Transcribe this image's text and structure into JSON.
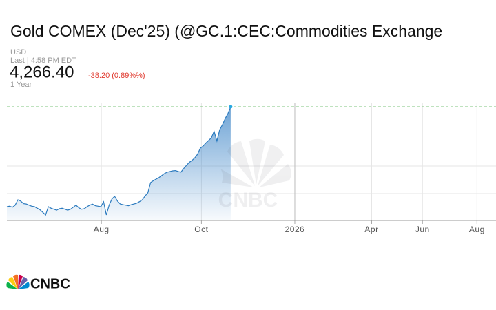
{
  "chart_data": {
    "type": "line",
    "title": "Gold COMEX (Dec'25) (@GC.1:CEC:Commodities Exchange",
    "currency": "USD",
    "last_time": "Last | 4:58 PM EDT",
    "price": "4,266.40",
    "change": "-38.20 (0.89%%)",
    "range": "1 Year",
    "brand": "CNBC",
    "color": "#2c7bbf",
    "last_color": "#27a9e1",
    "change_color": "#e03a2f",
    "x": [
      0,
      1,
      2,
      3,
      4,
      5,
      6,
      7,
      8,
      9,
      10,
      11,
      12,
      13,
      14,
      15,
      16,
      17,
      18,
      19,
      20,
      21,
      22,
      23,
      24,
      25,
      26,
      27,
      28,
      29,
      30,
      31,
      32,
      33,
      34,
      35,
      36,
      37,
      38,
      39,
      40,
      41,
      42,
      43,
      44,
      45,
      46,
      47,
      48,
      49,
      50,
      51,
      52,
      53,
      54,
      55,
      56,
      57,
      58,
      59,
      60,
      61,
      62,
      63,
      64,
      65,
      66,
      67,
      68,
      69,
      70,
      71,
      72,
      73,
      74,
      75,
      76,
      77,
      78,
      79,
      80,
      81
    ],
    "values": [
      3285,
      3290,
      3280,
      3300,
      3353,
      3340,
      3315,
      3312,
      3300,
      3290,
      3285,
      3270,
      3255,
      3230,
      3204,
      3285,
      3270,
      3260,
      3251,
      3265,
      3270,
      3260,
      3251,
      3260,
      3280,
      3300,
      3275,
      3260,
      3265,
      3285,
      3300,
      3310,
      3295,
      3290,
      3285,
      3333,
      3204,
      3300,
      3360,
      3387,
      3340,
      3312,
      3305,
      3300,
      3295,
      3305,
      3312,
      3320,
      3335,
      3353,
      3390,
      3421,
      3522,
      3540,
      3556,
      3570,
      3590,
      3610,
      3624,
      3630,
      3637,
      3640,
      3630,
      3625,
      3660,
      3691,
      3720,
      3740,
      3765,
      3800,
      3860,
      3880,
      3910,
      3935,
      3962,
      4025,
      3930,
      4040,
      4090,
      4150,
      4199,
      4266.4
    ],
    "xlim": [
      0,
      177
    ],
    "xticks": [
      {
        "value": 34.2,
        "label": "Aug"
      },
      {
        "value": 70.4,
        "label": "Oct"
      },
      {
        "value": 104.2,
        "label": "2026"
      },
      {
        "value": 132,
        "label": "Apr"
      },
      {
        "value": 150.4,
        "label": "Jun"
      },
      {
        "value": 170.1,
        "label": "Aug"
      }
    ],
    "ylim": [
      3150,
      4300
    ],
    "ygrid": [
      3414,
      3684
    ]
  }
}
